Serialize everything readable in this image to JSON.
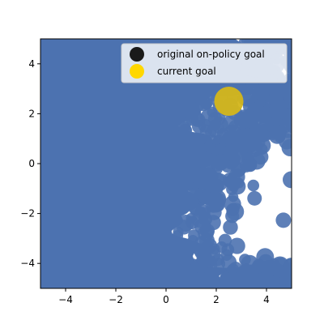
{
  "chart_data": {
    "type": "scatter",
    "title": "",
    "xlabel": "",
    "ylabel": "",
    "xlim": [
      -5,
      5
    ],
    "ylim": [
      -5,
      5
    ],
    "xticks": [
      -4,
      -2,
      0,
      2,
      4
    ],
    "yticks": [
      -4,
      -2,
      0,
      2,
      4
    ],
    "xtick_labels": [
      "−4",
      "−2",
      "0",
      "2",
      "4"
    ],
    "ytick_labels": [
      "−4",
      "−2",
      "0",
      "2",
      "4"
    ],
    "grid": false,
    "legend_position": "top-right",
    "colors": {
      "visited_states": "#4c72b0",
      "original_goal": "#1a1a1a",
      "current_goal": "#ffd700",
      "current_goal_marker": "#d4b61a"
    },
    "series": [
      {
        "name": "original on-policy goal",
        "points": []
      },
      {
        "name": "current goal",
        "points": [
          [
            2.5,
            2.5
          ]
        ]
      }
    ],
    "legend": [
      {
        "label": "original on-policy goal",
        "color": "#1a1a1a"
      },
      {
        "label": "current goal",
        "color": "#ffd700"
      }
    ]
  }
}
